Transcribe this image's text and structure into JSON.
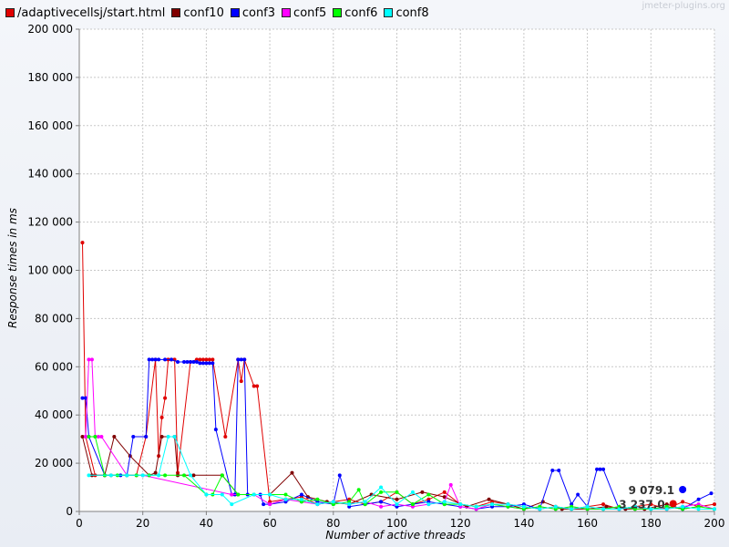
{
  "watermark": "jmeter-plugins.org",
  "chart_data": {
    "type": "line",
    "title": "",
    "xlabel": "Number of active threads",
    "ylabel": "Response times in ms",
    "xlim": [
      0,
      200
    ],
    "ylim": [
      0,
      200000
    ],
    "xticks": [
      0,
      20,
      40,
      60,
      80,
      100,
      120,
      140,
      160,
      180,
      200
    ],
    "xtick_labels": [
      "0",
      "20",
      "40",
      "60",
      "80",
      "100",
      "120",
      "140",
      "160",
      "180",
      "200"
    ],
    "yticks": [
      0,
      20000,
      40000,
      60000,
      80000,
      100000,
      120000,
      140000,
      160000,
      180000,
      200000
    ],
    "ytick_labels": [
      "0",
      "20 000",
      "40 000",
      "60 000",
      "80 000",
      "100 000",
      "120 000",
      "140 000",
      "160 000",
      "180 000",
      "200 000"
    ],
    "grid": true,
    "legend_position": "top-left",
    "series": [
      {
        "name": "/adaptivecellsj/start.html",
        "color": "#e00000",
        "x": [
          1,
          2,
          5,
          10,
          18,
          21,
          24,
          25,
          26,
          27,
          28,
          29,
          30,
          31,
          35,
          37,
          38,
          39,
          40,
          41,
          42,
          46,
          50,
          51,
          52,
          55,
          56,
          60,
          65,
          70,
          75,
          80,
          85,
          90,
          95,
          100,
          105,
          110,
          115,
          120,
          125,
          130,
          135,
          140,
          145,
          150,
          155,
          160,
          165,
          170,
          175,
          180,
          185,
          190,
          195,
          200
        ],
        "y": [
          111500,
          31000,
          15000,
          15000,
          15000,
          31000,
          63000,
          23000,
          39000,
          47000,
          63000,
          63000,
          63000,
          16000,
          62000,
          63000,
          63000,
          63000,
          63000,
          63000,
          63000,
          31000,
          63000,
          54000,
          63000,
          52000,
          52000,
          4000,
          5000,
          6000,
          3000,
          4000,
          5000,
          3000,
          4000,
          8000,
          3000,
          5000,
          8000,
          3000,
          2000,
          4000,
          3000,
          2000,
          1000,
          2000,
          1000,
          2000,
          3000,
          1000,
          2000,
          3000,
          1000,
          4000,
          2000,
          3000
        ]
      },
      {
        "name": "conf10",
        "color": "#800000",
        "x": [
          1,
          4,
          8,
          11,
          16,
          22,
          24,
          26,
          30,
          31,
          36,
          45,
          50,
          60,
          67,
          72,
          78,
          85,
          92,
          100,
          108,
          115,
          122,
          129,
          135,
          140,
          146,
          152,
          160,
          166,
          172,
          178,
          185,
          190,
          195
        ],
        "y": [
          31000,
          15000,
          15000,
          31000,
          23000,
          15000,
          16000,
          31000,
          31000,
          15000,
          15000,
          15000,
          7000,
          7000,
          16000,
          6000,
          4000,
          3000,
          7000,
          5000,
          8000,
          6000,
          2000,
          5000,
          3000,
          1000,
          4000,
          1000,
          1000,
          2000,
          1000,
          1000,
          3000,
          1000,
          2000
        ]
      },
      {
        "name": "conf3",
        "color": "#0000ff",
        "x": [
          1,
          2,
          3,
          8,
          13,
          15,
          17,
          21,
          22,
          23,
          24,
          25,
          27,
          29,
          31,
          33,
          34,
          35,
          36,
          37,
          38,
          39,
          40,
          41,
          42,
          43,
          48,
          49,
          50,
          51,
          52,
          53,
          57,
          58,
          60,
          65,
          70,
          75,
          80,
          82,
          85,
          90,
          95,
          100,
          105,
          110,
          115,
          120,
          125,
          130,
          135,
          140,
          145,
          149,
          151,
          155,
          157,
          160,
          163,
          164,
          165,
          170,
          175,
          180,
          185,
          190,
          195,
          199
        ],
        "y": [
          47000,
          47000,
          31000,
          15000,
          15000,
          15000,
          31000,
          31000,
          63000,
          63000,
          63000,
          63000,
          63000,
          63000,
          62000,
          62000,
          62000,
          62000,
          62000,
          62000,
          61500,
          61500,
          61500,
          61500,
          61500,
          34000,
          7000,
          7000,
          63000,
          63000,
          63000,
          7000,
          7000,
          3000,
          3000,
          4000,
          7000,
          4000,
          3000,
          15000,
          2000,
          3000,
          4000,
          2000,
          3000,
          4000,
          3000,
          2000,
          1000,
          2000,
          2000,
          3000,
          1000,
          17000,
          17000,
          3000,
          7000,
          2000,
          17500,
          17500,
          17500,
          1000,
          2000,
          1000,
          2000,
          1000,
          5000,
          7500
        ]
      },
      {
        "name": "conf5",
        "color": "#ff00ff",
        "x": [
          2,
          3,
          4,
          5,
          6,
          7,
          15,
          20,
          48,
          55,
          60,
          65,
          70,
          75,
          80,
          85,
          90,
          95,
          100,
          105,
          110,
          115,
          117,
          120,
          125,
          130,
          135,
          140,
          145,
          150,
          155,
          160,
          165,
          170,
          175,
          180,
          185,
          190,
          195,
          200
        ],
        "y": [
          31000,
          63000,
          63000,
          31000,
          31000,
          31000,
          15000,
          15000,
          7000,
          7000,
          3000,
          5000,
          4000,
          3000,
          4000,
          3000,
          4000,
          2000,
          3000,
          2000,
          3000,
          4000,
          11000,
          2000,
          1000,
          3000,
          2000,
          1000,
          2000,
          1000,
          2000,
          1000,
          1000,
          2000,
          1000,
          1000,
          1000,
          2000,
          3000,
          1000
        ]
      },
      {
        "name": "conf6",
        "color": "#00ff00",
        "x": [
          3,
          5,
          8,
          12,
          15,
          18,
          22,
          27,
          33,
          40,
          42,
          45,
          50,
          55,
          60,
          65,
          70,
          75,
          80,
          85,
          88,
          90,
          95,
          100,
          105,
          110,
          115,
          120,
          125,
          130,
          135,
          140,
          145,
          150,
          155,
          160,
          165,
          170,
          175,
          180,
          185,
          190,
          195,
          200
        ],
        "y": [
          31000,
          31000,
          15000,
          15000,
          15000,
          15000,
          15000,
          15000,
          15000,
          7000,
          7000,
          15000,
          7000,
          7000,
          7000,
          7000,
          4000,
          5000,
          3000,
          4000,
          9000,
          3000,
          8000,
          8000,
          3000,
          7000,
          3000,
          3000,
          2000,
          3000,
          2000,
          1000,
          2000,
          1000,
          2000,
          1000,
          1000,
          2000,
          1000,
          1000,
          2000,
          1000,
          2000,
          1000
        ]
      },
      {
        "name": "conf8",
        "color": "#00ffff",
        "x": [
          3,
          10,
          15,
          20,
          25,
          28,
          30,
          35,
          40,
          45,
          48,
          55,
          60,
          65,
          70,
          75,
          80,
          85,
          90,
          95,
          100,
          105,
          110,
          115,
          120,
          125,
          130,
          135,
          140,
          145,
          150,
          155,
          160,
          165,
          170,
          175,
          180,
          185,
          190,
          195,
          200
        ],
        "y": [
          15000,
          15000,
          15000,
          15000,
          15000,
          31000,
          31000,
          15000,
          7000,
          7000,
          3000,
          7000,
          7000,
          5000,
          5000,
          3000,
          4000,
          3000,
          4000,
          10000,
          3000,
          8000,
          3000,
          4000,
          3000,
          2000,
          3000,
          3000,
          2000,
          1000,
          2000,
          1000,
          2000,
          1000,
          1000,
          2000,
          1000,
          1000,
          2000,
          1000,
          1000
        ]
      }
    ],
    "annotations": [
      {
        "text": "9 079.1",
        "x": 190,
        "y": 9079.1,
        "color": "#0000ff"
      },
      {
        "text": "3 237.0",
        "x": 187,
        "y": 3237.0,
        "color": "#e00000"
      }
    ]
  }
}
